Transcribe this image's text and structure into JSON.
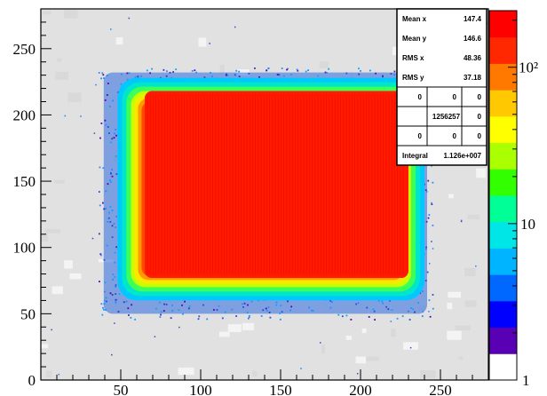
{
  "chart_data": {
    "type": "heatmap",
    "title": "",
    "xlabel": "",
    "ylabel": "",
    "xlim": [
      0,
      280
    ],
    "ylim": [
      0,
      280
    ],
    "x_ticks": [
      "50",
      "100",
      "150",
      "200",
      "250"
    ],
    "y_ticks": [
      "0",
      "50",
      "100",
      "150",
      "200",
      "250"
    ],
    "z_scale": "log",
    "z_ticks": [
      "1",
      "10",
      "10²"
    ],
    "regions": [
      {
        "level": "core",
        "x": [
          65,
          230
        ],
        "y": [
          77,
          218
        ]
      },
      {
        "level": "halo",
        "x": [
          48,
          240
        ],
        "y": [
          60,
          228
        ]
      },
      {
        "level": "edge",
        "x": [
          36,
          245
        ],
        "y": [
          46,
          236
        ]
      }
    ],
    "stats_box": {
      "rows": [
        {
          "label": "Mean x",
          "value": "147.4"
        },
        {
          "label": "Mean y",
          "value": "146.6"
        },
        {
          "label": "RMS x",
          "value": "48.36"
        },
        {
          "label": "RMS y",
          "value": "37.18"
        }
      ],
      "grid": [
        [
          "0",
          "0",
          "0"
        ],
        [
          "",
          "1256257",
          "0"
        ],
        [
          "0",
          "0",
          "0"
        ]
      ],
      "integral_label": "Integral",
      "integral_value": "1.126e+007"
    },
    "colors": {
      "background": "#e1e1e1",
      "core": "#ff1a00",
      "palette": [
        "#ffffff",
        "#5a00b4",
        "#0000ff",
        "#0068ff",
        "#00b4ff",
        "#00e6e6",
        "#00ff96",
        "#32ff00",
        "#aaff00",
        "#ffff00",
        "#ffc800",
        "#ff7800",
        "#ff2800",
        "#ff0000"
      ]
    }
  }
}
